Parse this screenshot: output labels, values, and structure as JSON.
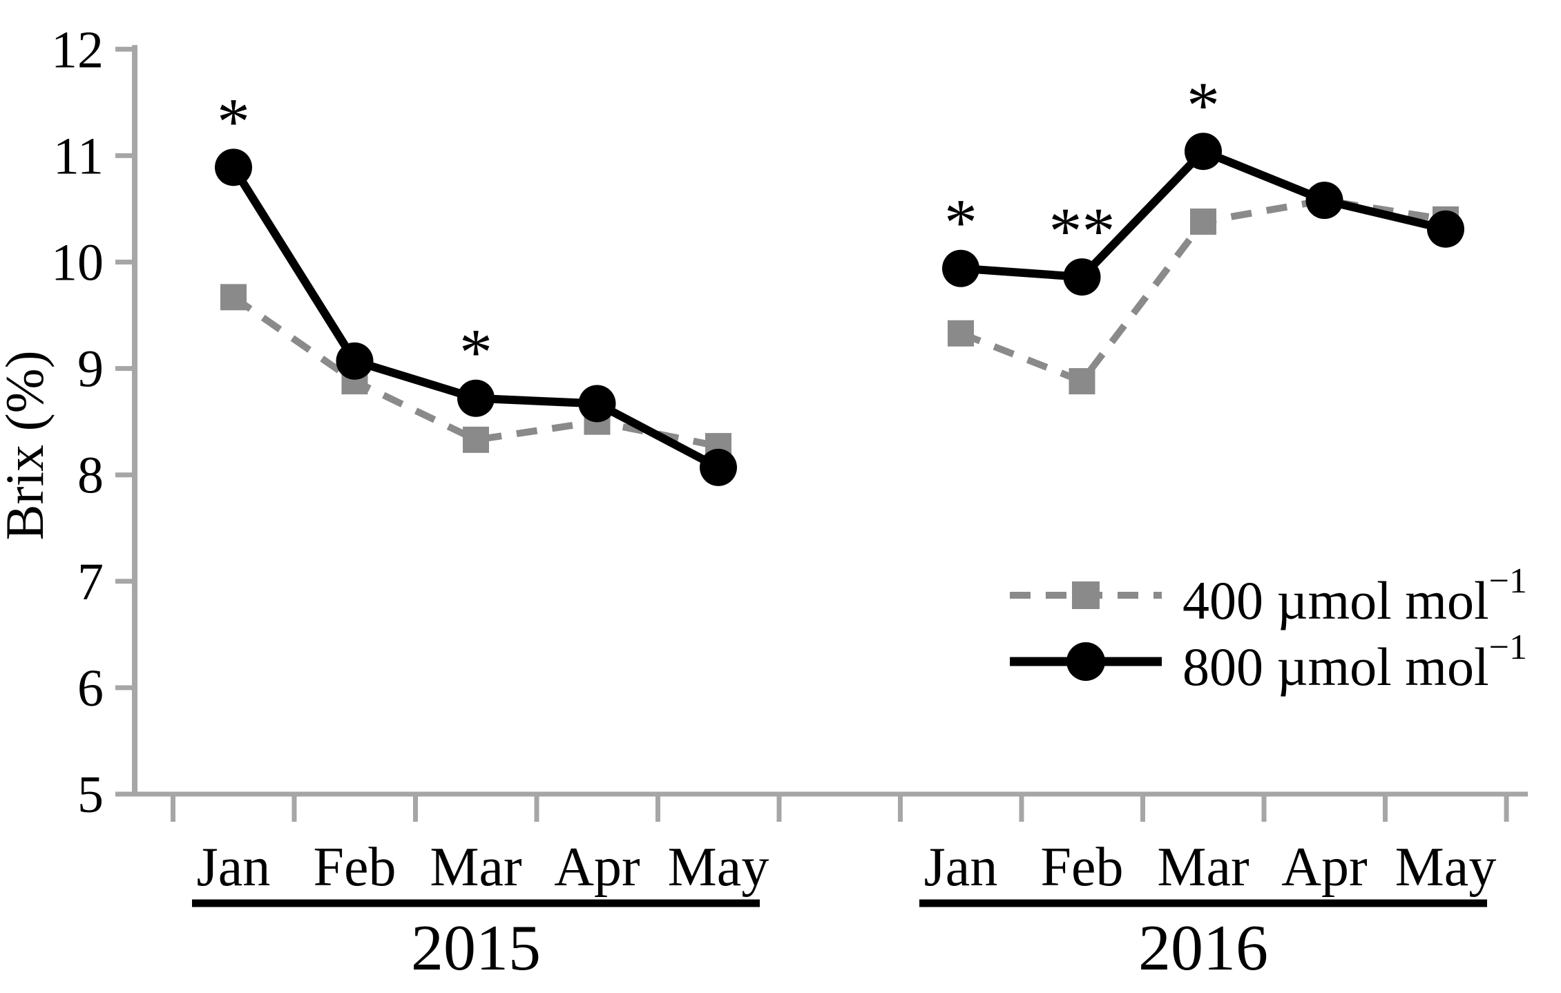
{
  "chart_data": {
    "type": "line",
    "title": "",
    "ylabel": "Brix (%)",
    "xlabel": "",
    "ylim": [
      5,
      12
    ],
    "yticks": [
      "5",
      "6",
      "7",
      "8",
      "9",
      "10",
      "11",
      "12"
    ],
    "grid": false,
    "axis_color": "#a6a6a6",
    "x_groups": [
      {
        "label": "2015",
        "months": [
          "Jan",
          "Feb",
          "Mar",
          "Apr",
          "May"
        ]
      },
      {
        "label": "2016",
        "months": [
          "Jan",
          "Feb",
          "Mar",
          "Apr",
          "May"
        ]
      }
    ],
    "series": [
      {
        "name": "400 µmol mol-1",
        "label": "400 µmol mol",
        "label_sup": "−1",
        "color": "#8a8a8a",
        "line_style": "dashed",
        "marker": "square",
        "values": {
          "2015": [
            9.67,
            8.88,
            8.33,
            8.5,
            8.27
          ],
          "2016": [
            9.33,
            8.88,
            10.38,
            10.58,
            10.4
          ]
        }
      },
      {
        "name": "800 µmol mol-1",
        "label": "800 µmol mol",
        "label_sup": "−1",
        "color": "#000000",
        "line_style": "solid",
        "marker": "circle",
        "values": {
          "2015": [
            10.89,
            9.07,
            8.72,
            8.67,
            8.07
          ],
          "2016": [
            9.94,
            9.86,
            11.04,
            10.58,
            10.31
          ]
        }
      }
    ],
    "annotations": [
      {
        "group": 0,
        "month": 0,
        "series": 1,
        "text": "*"
      },
      {
        "group": 0,
        "month": 2,
        "series": 1,
        "text": "*"
      },
      {
        "group": 1,
        "month": 0,
        "series": 1,
        "text": "*"
      },
      {
        "group": 1,
        "month": 1,
        "series": 1,
        "text": "**"
      },
      {
        "group": 1,
        "month": 2,
        "series": 1,
        "text": "*"
      }
    ],
    "legend": {
      "position": "lower-right"
    }
  }
}
